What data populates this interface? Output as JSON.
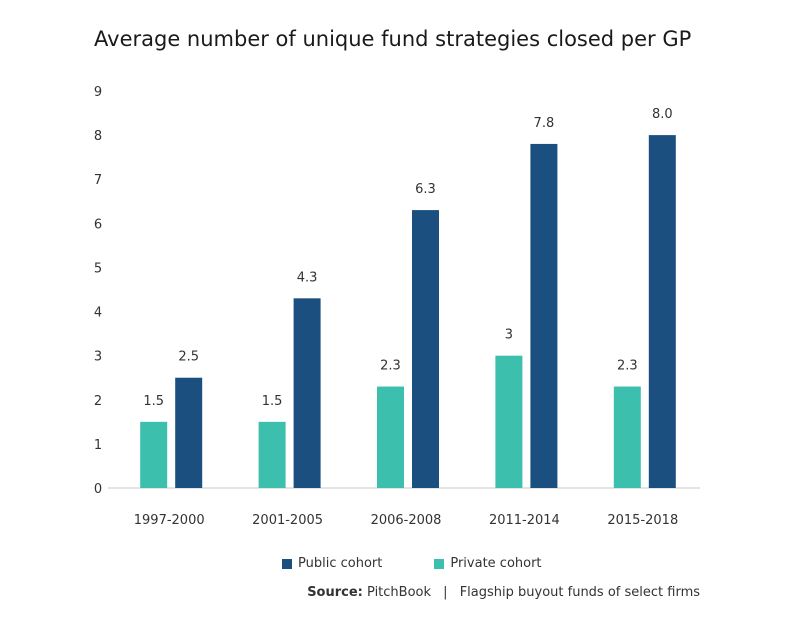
{
  "chart_data": {
    "type": "bar",
    "title": "Average number of unique fund strategies closed per GP",
    "categories": [
      "1997-2000",
      "2001-2005",
      "2006-2008",
      "2011-2014",
      "2015-2018"
    ],
    "series": [
      {
        "name": "Private cohort",
        "color": "#3dbfae",
        "values": [
          1.5,
          1.5,
          2.3,
          3,
          2.3
        ],
        "labels": [
          "1.5",
          "1.5",
          "2.3",
          "3",
          "2.3"
        ]
      },
      {
        "name": "Public cohort",
        "color": "#1b4f80",
        "values": [
          2.5,
          4.3,
          6.3,
          7.8,
          8.0
        ],
        "labels": [
          "2.5",
          "4.3",
          "6.3",
          "7.8",
          "8.0"
        ]
      }
    ],
    "ylim": [
      0,
      9
    ],
    "yticks": [
      "0",
      "1",
      "2",
      "3",
      "4",
      "5",
      "6",
      "7",
      "8",
      "9"
    ],
    "xlabel": "",
    "ylabel": "",
    "grid": false,
    "legend_position": "bottom"
  },
  "legend": {
    "items": [
      {
        "label": "Public cohort",
        "color": "#1b4f80"
      },
      {
        "label": "Private cohort",
        "color": "#3dbfae"
      }
    ]
  },
  "source": {
    "label": "Source:",
    "name": "PitchBook",
    "separator": "|",
    "note": "Flagship buyout funds of select firms"
  }
}
